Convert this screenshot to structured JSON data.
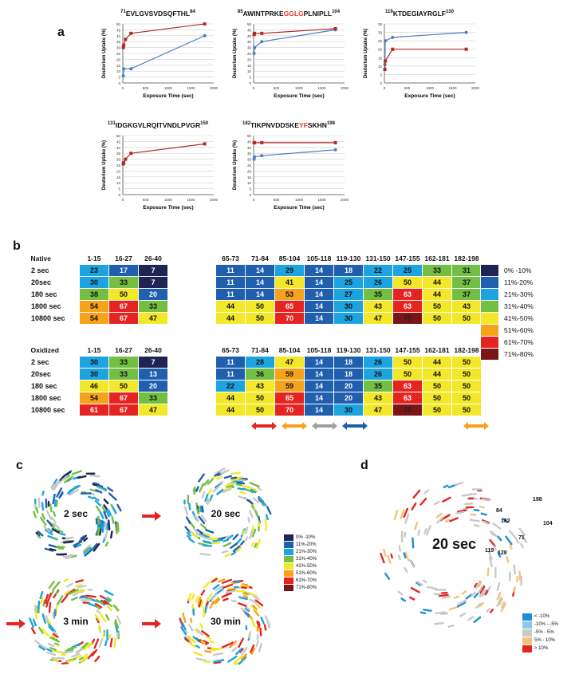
{
  "panels": {
    "a": "a",
    "b": "b",
    "c": "c",
    "d": "d"
  },
  "plots": [
    {
      "pre": "71",
      "title_parts": [
        {
          "t": "EVLGVSVDSQFTHL",
          "red": false
        }
      ],
      "post": "84",
      "ymax": 50,
      "yticks": [
        0,
        5,
        10,
        15,
        20,
        25,
        30,
        35,
        40,
        45,
        50
      ],
      "blue": [
        [
          10,
          6
        ],
        [
          20,
          12
        ],
        [
          180,
          12
        ],
        [
          1800,
          40
        ]
      ],
      "red": [
        [
          10,
          30
        ],
        [
          20,
          32
        ],
        [
          60,
          37
        ],
        [
          180,
          42
        ],
        [
          1800,
          50
        ]
      ]
    },
    {
      "pre": "85",
      "title_parts": [
        {
          "t": "AWINTPRKE",
          "red": false
        },
        {
          "t": "GGLG",
          "red": true
        },
        {
          "t": "PLNIPLL",
          "red": false
        }
      ],
      "post": "104",
      "ymax": 50,
      "yticks": [
        0,
        5,
        10,
        15,
        20,
        25,
        30,
        35,
        40,
        45,
        50
      ],
      "blue": [
        [
          10,
          25
        ],
        [
          20,
          30
        ],
        [
          180,
          35
        ],
        [
          1800,
          45
        ]
      ],
      "red": [
        [
          10,
          41
        ],
        [
          20,
          42
        ],
        [
          180,
          42
        ],
        [
          1800,
          46
        ]
      ]
    },
    {
      "pre": "119",
      "title_parts": [
        {
          "t": "KTDEGIAYRGLF",
          "red": false
        }
      ],
      "post": "130",
      "ymax": 35,
      "yticks": [
        0,
        5,
        10,
        15,
        20,
        25,
        30,
        35
      ],
      "blue": [
        [
          10,
          11
        ],
        [
          20,
          25
        ],
        [
          180,
          27
        ],
        [
          1800,
          30
        ]
      ],
      "red": [
        [
          10,
          8
        ],
        [
          20,
          13
        ],
        [
          180,
          20
        ],
        [
          1800,
          20
        ]
      ]
    },
    {
      "pre": "131",
      "title_parts": [
        {
          "t": "IDGKGVLRQITVNDLPVGR",
          "red": false
        }
      ],
      "post": "150",
      "ymax": 50,
      "yticks": [
        0,
        5,
        10,
        15,
        20,
        25,
        30,
        35,
        40,
        45,
        50
      ],
      "blue": [],
      "red": [
        [
          10,
          26
        ],
        [
          20,
          27
        ],
        [
          60,
          30
        ],
        [
          180,
          35
        ],
        [
          1800,
          43
        ]
      ]
    },
    {
      "pre": "182",
      "title_parts": [
        {
          "t": "TIKPNVDDSKE",
          "red": false
        },
        {
          "t": "YF",
          "red": true
        },
        {
          "t": "SKHN",
          "red": false
        }
      ],
      "post": "198",
      "ymax": 50,
      "yticks": [
        0,
        5,
        10,
        15,
        20,
        25,
        30,
        35,
        40,
        45,
        50
      ],
      "blue": [
        [
          10,
          30
        ],
        [
          20,
          32
        ],
        [
          180,
          33
        ],
        [
          1800,
          38
        ]
      ],
      "red": [
        [
          10,
          44
        ],
        [
          20,
          44
        ],
        [
          180,
          44
        ],
        [
          1800,
          44
        ]
      ]
    }
  ],
  "plot_axes": {
    "xlabel": "Exposure Time (sec)",
    "ylabel": "Deuterium Uptake (%)",
    "xticks": [
      0,
      500,
      1000,
      1500,
      2000
    ]
  },
  "heatmaps": [
    {
      "state": "Native",
      "cols_left": [
        "1-15",
        "16-27",
        "26-40"
      ],
      "cols_right": [
        "65-73",
        "71-84",
        "85-104",
        "105-118",
        "119-130",
        "131-150",
        "147-155",
        "162-181",
        "182-198"
      ],
      "rows": [
        {
          "label": "2 sec",
          "left": [
            23,
            17,
            7
          ],
          "right": [
            11,
            14,
            29,
            14,
            18,
            22,
            25,
            33,
            31
          ]
        },
        {
          "label": "20sec",
          "left": [
            30,
            33,
            7
          ],
          "right": [
            11,
            14,
            41,
            14,
            25,
            26,
            50,
            44,
            37
          ]
        },
        {
          "label": "180 sec",
          "left": [
            38,
            50,
            20
          ],
          "right": [
            11,
            14,
            53,
            14,
            27,
            35,
            63,
            44,
            37
          ]
        },
        {
          "label": "1800 sec",
          "left": [
            54,
            67,
            33
          ],
          "right": [
            44,
            50,
            65,
            14,
            30,
            43,
            63,
            50,
            43
          ]
        },
        {
          "label": "10800 sec",
          "left": [
            54,
            67,
            47
          ],
          "right": [
            44,
            50,
            70,
            14,
            30,
            47,
            75,
            50,
            50
          ]
        }
      ]
    },
    {
      "state": "Oxidized",
      "cols_left": [
        "1-15",
        "16-27",
        "26-40"
      ],
      "cols_right": [
        "65-73",
        "71-84",
        "85-104",
        "105-118",
        "119-130",
        "131-150",
        "147-155",
        "162-181",
        "182-198"
      ],
      "rows": [
        {
          "label": "2 sec",
          "left": [
            30,
            33,
            7
          ],
          "right": [
            11,
            28,
            47,
            14,
            18,
            26,
            50,
            44,
            50
          ]
        },
        {
          "label": "20sec",
          "left": [
            30,
            33,
            13
          ],
          "right": [
            11,
            36,
            59,
            14,
            18,
            26,
            50,
            44,
            50
          ]
        },
        {
          "label": "180 sec",
          "left": [
            46,
            50,
            20
          ],
          "right": [
            22,
            43,
            59,
            14,
            20,
            35,
            63,
            50,
            50
          ]
        },
        {
          "label": "1800 sec",
          "left": [
            54,
            67,
            33
          ],
          "right": [
            44,
            50,
            65,
            14,
            20,
            43,
            63,
            50,
            50
          ]
        },
        {
          "label": "10800 sec",
          "left": [
            61,
            67,
            47
          ],
          "right": [
            44,
            50,
            70,
            14,
            30,
            47,
            75,
            50,
            50
          ]
        }
      ]
    }
  ],
  "legend_b": [
    {
      "label": "0% -10%",
      "color": "#1f2455"
    },
    {
      "label": "11%-20%",
      "color": "#1f5fae"
    },
    {
      "label": "21%-30%",
      "color": "#1ca3e0"
    },
    {
      "label": "31%-40%",
      "color": "#72bf44"
    },
    {
      "label": "41%-50%",
      "color": "#f2e829"
    },
    {
      "label": "51%-60%",
      "color": "#f7a21b"
    },
    {
      "label": "61%-70%",
      "color": "#e52421"
    },
    {
      "label": "71%-80%",
      "color": "#7a1416"
    }
  ],
  "arrows_b": [
    {
      "col": 1,
      "color": "#e52421"
    },
    {
      "col": 2,
      "color": "#f7a21b"
    },
    {
      "col": 3,
      "color": "#a0a0a0"
    },
    {
      "col": 4,
      "color": "#1f5fae"
    },
    {
      "col": 8,
      "color": "#f7a21b"
    }
  ],
  "structures_c": [
    {
      "label": "2 sec"
    },
    {
      "label": "20 sec"
    },
    {
      "label": "3 min"
    },
    {
      "label": "30 min"
    }
  ],
  "legend_c": [
    "0% -10%",
    "11%-20%",
    "21%-30%",
    "31%-40%",
    "41%-50%",
    "51%-60%",
    "61%-70%",
    "71%-80%"
  ],
  "structure_d": {
    "label": "20 sec",
    "residues": [
      "198",
      "84",
      "182",
      "104",
      "71",
      "119",
      "128"
    ]
  },
  "legend_d": [
    {
      "label": "< -10%",
      "color": "#1c8fd6"
    },
    {
      "label": "-10% - -5%",
      "color": "#8ec9ea"
    },
    {
      "label": "-5% - 5%",
      "color": "#c9c9c9"
    },
    {
      "label": "5% - 10%",
      "color": "#f5c27a"
    },
    {
      "label": "> 10%",
      "color": "#e52421"
    }
  ]
}
